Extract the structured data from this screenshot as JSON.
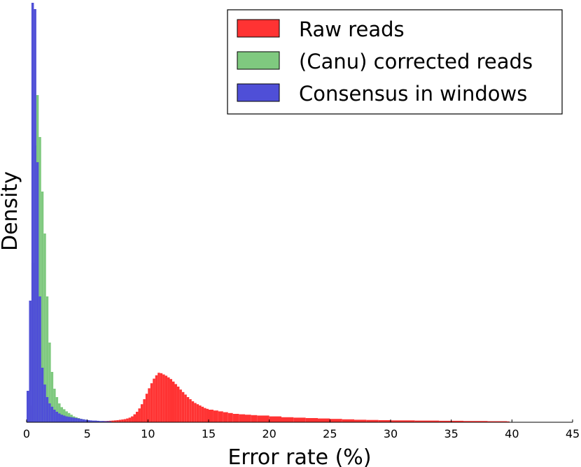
{
  "chart_data": {
    "type": "histogram",
    "xlabel": "Error rate (%)",
    "ylabel": "Density",
    "xlim": [
      0,
      45
    ],
    "xticks": [
      0,
      5,
      10,
      15,
      20,
      25,
      30,
      35,
      40,
      45
    ],
    "ylim": [
      0,
      1
    ],
    "legend_position": "top-right",
    "grid": false,
    "bin_width": 0.2,
    "series": [
      {
        "name": "Raw reads",
        "color": "#ff3333",
        "bins": [
          [
            5.0,
            0.0015
          ],
          [
            5.2,
            0.0015
          ],
          [
            5.4,
            0.0018
          ],
          [
            5.6,
            0.002
          ],
          [
            5.8,
            0.0022
          ],
          [
            6.0,
            0.0025
          ],
          [
            6.2,
            0.0028
          ],
          [
            6.4,
            0.003
          ],
          [
            6.6,
            0.0033
          ],
          [
            6.8,
            0.0036
          ],
          [
            7.0,
            0.004
          ],
          [
            7.2,
            0.0045
          ],
          [
            7.4,
            0.005
          ],
          [
            7.6,
            0.0058
          ],
          [
            7.8,
            0.0066
          ],
          [
            8.0,
            0.0075
          ],
          [
            8.2,
            0.009
          ],
          [
            8.4,
            0.011
          ],
          [
            8.6,
            0.014
          ],
          [
            8.8,
            0.019
          ],
          [
            9.0,
            0.025
          ],
          [
            9.2,
            0.033
          ],
          [
            9.4,
            0.043
          ],
          [
            9.6,
            0.055
          ],
          [
            9.8,
            0.068
          ],
          [
            10.0,
            0.081
          ],
          [
            10.2,
            0.093
          ],
          [
            10.4,
            0.104
          ],
          [
            10.6,
            0.112
          ],
          [
            10.8,
            0.118
          ],
          [
            11.0,
            0.117
          ],
          [
            11.2,
            0.114
          ],
          [
            11.4,
            0.111
          ],
          [
            11.6,
            0.107
          ],
          [
            11.8,
            0.103
          ],
          [
            12.0,
            0.097
          ],
          [
            12.2,
            0.091
          ],
          [
            12.4,
            0.085
          ],
          [
            12.6,
            0.078
          ],
          [
            12.8,
            0.072
          ],
          [
            13.0,
            0.066
          ],
          [
            13.2,
            0.06
          ],
          [
            13.4,
            0.055
          ],
          [
            13.6,
            0.05
          ],
          [
            13.8,
            0.046
          ],
          [
            14.0,
            0.043
          ],
          [
            14.2,
            0.04
          ],
          [
            14.4,
            0.037
          ],
          [
            14.6,
            0.034
          ],
          [
            14.8,
            0.032
          ],
          [
            15.0,
            0.03
          ],
          [
            15.4,
            0.028
          ],
          [
            15.8,
            0.026
          ],
          [
            16.2,
            0.024
          ],
          [
            16.6,
            0.022
          ],
          [
            17.0,
            0.02
          ],
          [
            17.5,
            0.019
          ],
          [
            18.0,
            0.018
          ],
          [
            18.5,
            0.017
          ],
          [
            19.0,
            0.016
          ],
          [
            20.0,
            0.014
          ],
          [
            21.0,
            0.012
          ],
          [
            22.0,
            0.011
          ],
          [
            23.0,
            0.01
          ],
          [
            24.0,
            0.009
          ],
          [
            25.0,
            0.008
          ],
          [
            26.0,
            0.007
          ],
          [
            27.0,
            0.006
          ],
          [
            28.0,
            0.0055
          ],
          [
            29.0,
            0.005
          ],
          [
            30.0,
            0.0045
          ],
          [
            32.0,
            0.004
          ],
          [
            34.0,
            0.0035
          ],
          [
            36.0,
            0.003
          ],
          [
            38.0,
            0.0025
          ],
          [
            39.6,
            0.002
          ]
        ]
      },
      {
        "name": "(Canu) corrected reads",
        "color": "#7fc97f",
        "bins": [
          [
            0.0,
            0.005
          ],
          [
            0.2,
            0.04
          ],
          [
            0.4,
            0.38
          ],
          [
            0.6,
            0.66
          ],
          [
            0.8,
            0.78
          ],
          [
            1.0,
            0.68
          ],
          [
            1.2,
            0.55
          ],
          [
            1.4,
            0.45
          ],
          [
            1.6,
            0.3
          ],
          [
            1.8,
            0.19
          ],
          [
            2.0,
            0.12
          ],
          [
            2.2,
            0.08
          ],
          [
            2.4,
            0.06
          ],
          [
            2.6,
            0.045
          ],
          [
            2.8,
            0.036
          ],
          [
            3.0,
            0.031
          ],
          [
            3.2,
            0.026
          ],
          [
            3.4,
            0.022
          ],
          [
            3.6,
            0.018
          ],
          [
            3.8,
            0.014
          ],
          [
            4.0,
            0.012
          ],
          [
            4.2,
            0.01
          ],
          [
            4.4,
            0.008
          ],
          [
            4.6,
            0.007
          ],
          [
            4.8,
            0.006
          ],
          [
            5.0,
            0.005
          ],
          [
            5.2,
            0.004
          ],
          [
            5.4,
            0.0035
          ],
          [
            5.6,
            0.003
          ],
          [
            5.8,
            0.003
          ]
        ]
      },
      {
        "name": "Consensus in windows",
        "color": "#4f4fd7",
        "bins": [
          [
            0.0,
            0.075
          ],
          [
            0.2,
            0.29
          ],
          [
            0.4,
            1.0
          ],
          [
            0.6,
            0.985
          ],
          [
            0.8,
            0.62
          ],
          [
            1.0,
            0.3
          ],
          [
            1.2,
            0.13
          ],
          [
            1.4,
            0.09
          ],
          [
            1.6,
            0.06
          ],
          [
            1.8,
            0.045
          ],
          [
            2.0,
            0.037
          ],
          [
            2.2,
            0.03
          ],
          [
            2.4,
            0.025
          ],
          [
            2.6,
            0.021
          ],
          [
            2.8,
            0.018
          ],
          [
            3.0,
            0.016
          ],
          [
            3.2,
            0.014
          ],
          [
            3.4,
            0.013
          ],
          [
            3.6,
            0.012
          ],
          [
            3.8,
            0.011
          ],
          [
            4.0,
            0.01
          ],
          [
            4.2,
            0.009
          ],
          [
            4.4,
            0.008
          ],
          [
            4.6,
            0.007
          ],
          [
            4.8,
            0.006
          ],
          [
            5.0,
            0.005
          ],
          [
            5.2,
            0.0045
          ],
          [
            5.4,
            0.004
          ],
          [
            5.6,
            0.004
          ],
          [
            5.8,
            0.0035
          ],
          [
            6.0,
            0.003
          ],
          [
            6.4,
            0.0025
          ],
          [
            6.8,
            0.002
          ]
        ]
      }
    ]
  }
}
